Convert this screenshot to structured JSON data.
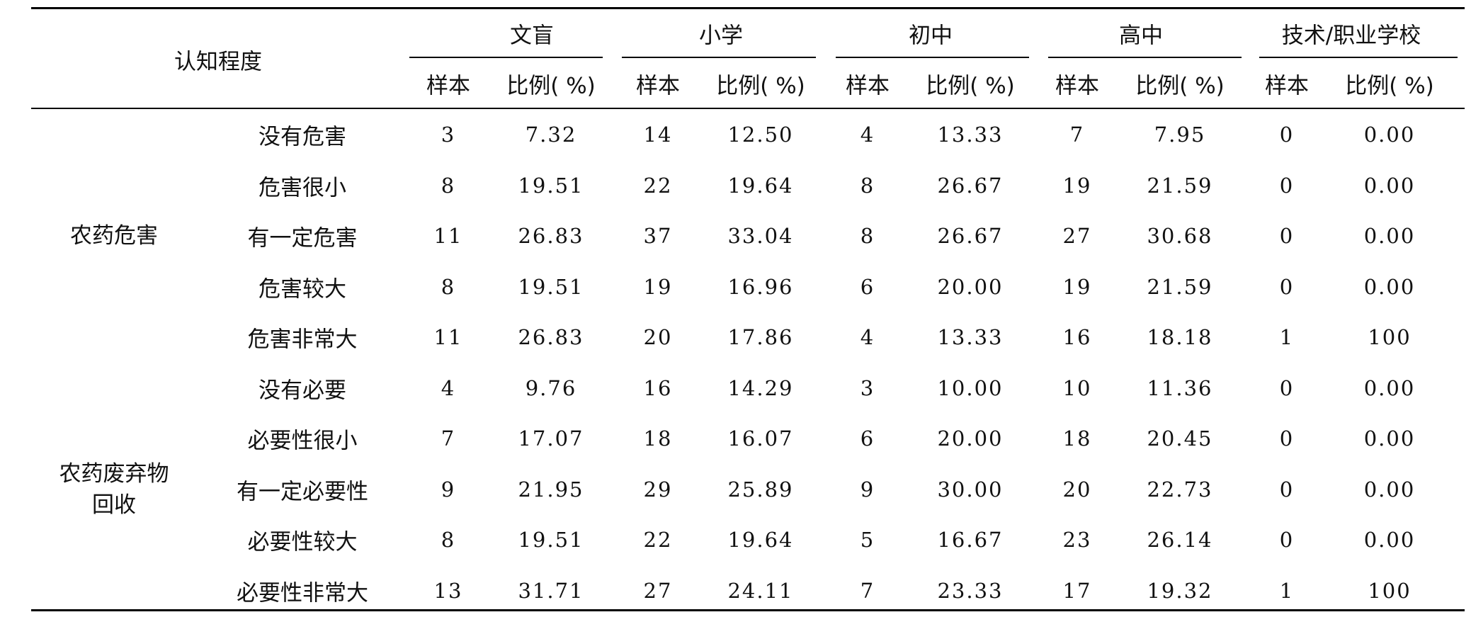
{
  "table": {
    "corner_header": "认知程度",
    "groups": [
      "文盲",
      "小学",
      "初中",
      "高中",
      "技术/职业学校"
    ],
    "sub_headers": [
      "样本",
      "比例( %)"
    ],
    "sections": [
      {
        "label_lines": [
          "农药危害"
        ],
        "rows": [
          {
            "label": "没有危害",
            "values": [
              "3",
              "7.32",
              "14",
              "12.50",
              "4",
              "13.33",
              "7",
              "7.95",
              "0",
              "0.00"
            ]
          },
          {
            "label": "危害很小",
            "values": [
              "8",
              "19.51",
              "22",
              "19.64",
              "8",
              "26.67",
              "19",
              "21.59",
              "0",
              "0.00"
            ]
          },
          {
            "label": "有一定危害",
            "values": [
              "11",
              "26.83",
              "37",
              "33.04",
              "8",
              "26.67",
              "27",
              "30.68",
              "0",
              "0.00"
            ]
          },
          {
            "label": "危害较大",
            "values": [
              "8",
              "19.51",
              "19",
              "16.96",
              "6",
              "20.00",
              "19",
              "21.59",
              "0",
              "0.00"
            ]
          },
          {
            "label": "危害非常大",
            "values": [
              "11",
              "26.83",
              "20",
              "17.86",
              "4",
              "13.33",
              "16",
              "18.18",
              "1",
              "100"
            ]
          }
        ]
      },
      {
        "label_lines": [
          "农药废弃物",
          "回收"
        ],
        "rows": [
          {
            "label": "没有必要",
            "values": [
              "4",
              "9.76",
              "16",
              "14.29",
              "3",
              "10.00",
              "10",
              "11.36",
              "0",
              "0.00"
            ]
          },
          {
            "label": "必要性很小",
            "values": [
              "7",
              "17.07",
              "18",
              "16.07",
              "6",
              "20.00",
              "18",
              "20.45",
              "0",
              "0.00"
            ]
          },
          {
            "label": "有一定必要性",
            "values": [
              "9",
              "21.95",
              "29",
              "25.89",
              "9",
              "30.00",
              "20",
              "22.73",
              "0",
              "0.00"
            ]
          },
          {
            "label": "必要性较大",
            "values": [
              "8",
              "19.51",
              "22",
              "19.64",
              "5",
              "16.67",
              "23",
              "26.14",
              "0",
              "0.00"
            ]
          },
          {
            "label": "必要性非常大",
            "values": [
              "13",
              "31.71",
              "27",
              "24.11",
              "7",
              "23.33",
              "17",
              "19.32",
              "1",
              "100"
            ]
          }
        ]
      }
    ]
  }
}
